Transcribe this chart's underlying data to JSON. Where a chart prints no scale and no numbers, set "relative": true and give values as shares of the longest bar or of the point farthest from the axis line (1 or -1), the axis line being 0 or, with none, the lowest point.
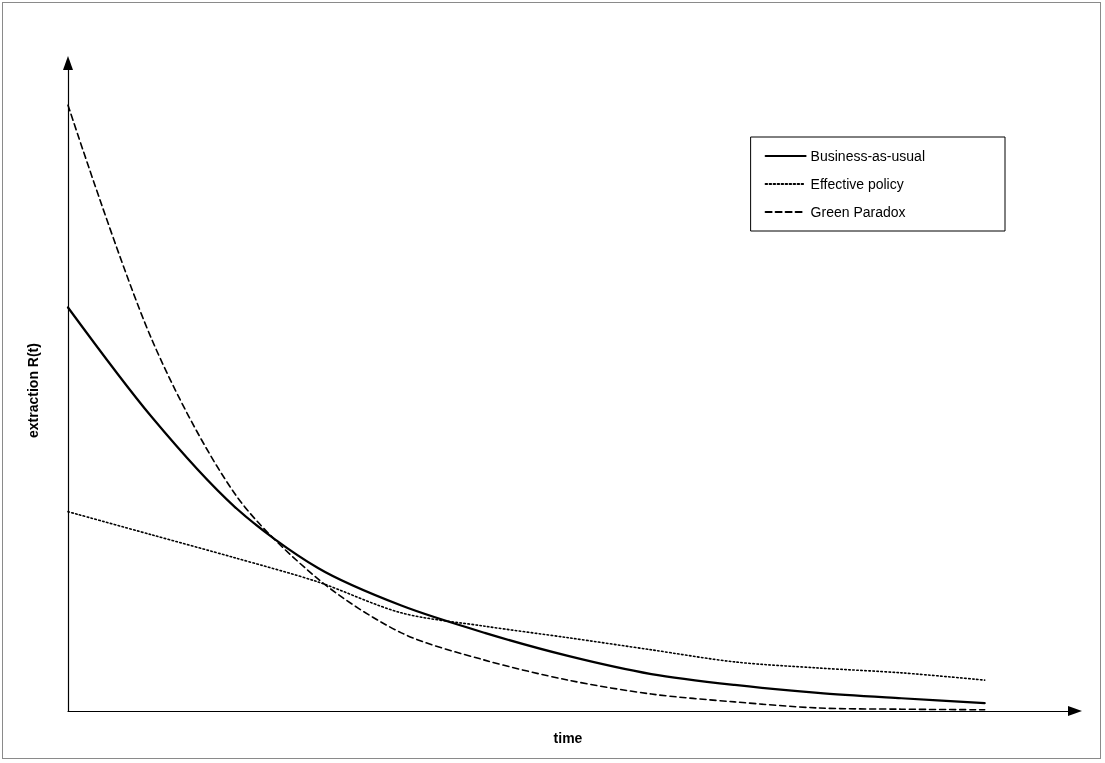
{
  "chart_data": {
    "type": "line",
    "xlabel": "time",
    "ylabel": "extraction R(t)",
    "relative": true,
    "categories": [
      null,
      null,
      null,
      null,
      null,
      null,
      null,
      null,
      null,
      null,
      null,
      null,
      null
    ],
    "series": [
      {
        "name": "Business-as-usual",
        "color": "#000000",
        "line_style": "solid",
        "values": [
          0.666,
          0.486,
          0.337,
          0.236,
          0.174,
          0.129,
          0.091,
          0.061,
          0.043,
          0.03,
          0.021,
          0.013,
          null
        ]
      },
      {
        "name": "Effective policy",
        "color": "#000000",
        "line_style": "dotted",
        "values": [
          0.329,
          0.291,
          0.253,
          0.213,
          0.162,
          0.14,
          0.121,
          0.101,
          0.081,
          0.071,
          0.063,
          0.051,
          null
        ]
      },
      {
        "name": "Green Paradox",
        "color": "#000000",
        "line_style": "dashed",
        "values": [
          1.0,
          0.615,
          0.359,
          0.218,
          0.129,
          0.084,
          0.051,
          0.028,
          0.015,
          0.005,
          0.003,
          0.002,
          null
        ]
      }
    ],
    "marker": "none",
    "grid": false,
    "legend": "top right",
    "tick_labels": false
  }
}
